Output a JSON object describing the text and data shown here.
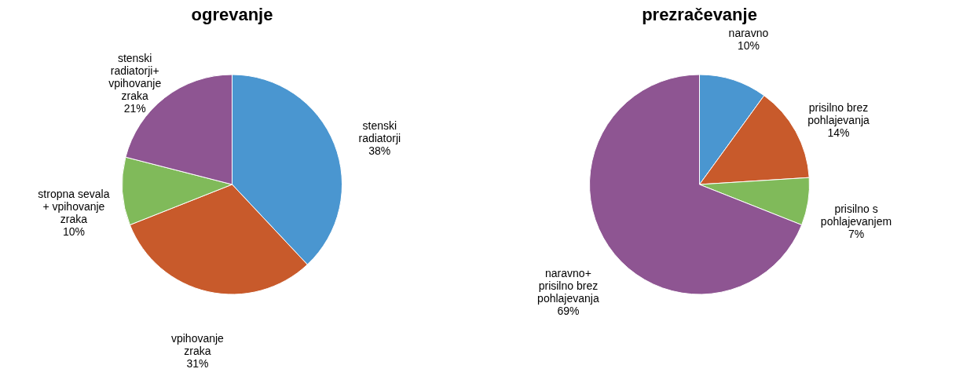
{
  "chart_data": [
    {
      "type": "pie",
      "title": "ogrevanje",
      "categories": [
        "stenski radiatorji",
        "vpihovanje zraka",
        "stropna sevala + vpihovanje zraka",
        "stenski radiatorji+ vpihovanje zraka"
      ],
      "values": [
        38,
        31,
        10,
        21
      ],
      "value_labels": [
        "38%",
        "31%",
        "10%",
        "21%"
      ],
      "colors": [
        "#4a96d0",
        "#c85a2b",
        "#80ba5a",
        "#8e5592"
      ]
    },
    {
      "type": "pie",
      "title": "prezračevanje",
      "categories": [
        "naravno",
        "prisilno brez pohlajevanja",
        "prisilno s pohlajevanjem",
        "naravno+ prisilno brez pohlajevanja"
      ],
      "values": [
        10,
        14,
        7,
        69
      ],
      "value_labels": [
        "10%",
        "14%",
        "7%",
        "69%"
      ],
      "colors": [
        "#4a96d0",
        "#c85a2b",
        "#80ba5a",
        "#8e5592"
      ]
    }
  ]
}
